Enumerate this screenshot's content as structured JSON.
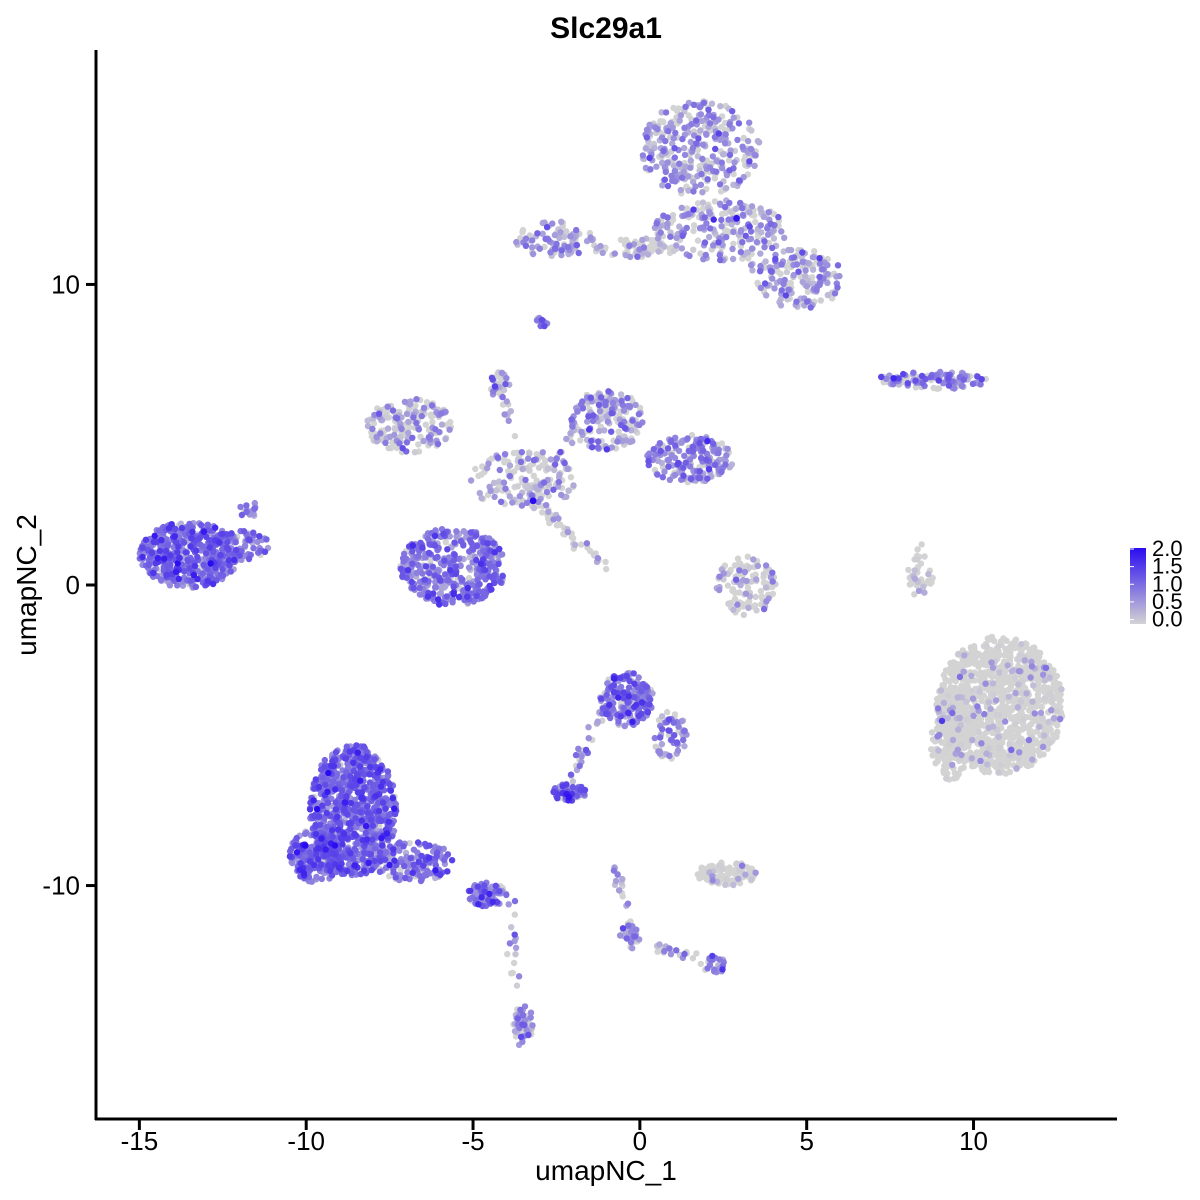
{
  "chart_data": {
    "type": "scatter",
    "title": "Slc29a1",
    "xlabel": "umapNC_1",
    "ylabel": "umapNC_2",
    "xlim": [
      -16.3,
      14.3
    ],
    "ylim": [
      -17.8,
      17.8
    ],
    "x_ticks": [
      -15,
      -10,
      -5,
      0,
      5,
      10
    ],
    "x_tick_labels": [
      "-15",
      "-10",
      "-5",
      "0",
      "5",
      "10"
    ],
    "y_ticks": [
      -10,
      0,
      10
    ],
    "y_tick_labels": [
      "-10",
      "0",
      "10"
    ],
    "grid": false,
    "legend_position": "right",
    "color_scale": {
      "low_color": "#d3d3d3",
      "high_color": "#2a0cf0",
      "min": 0.0,
      "max": 2.0,
      "labels": [
        "2.0",
        "1.5",
        "1.0",
        "0.5",
        "0.0"
      ]
    },
    "clusters": [
      {
        "cx": 1.8,
        "cy": 14.5,
        "rx": 1.8,
        "ry": 1.6,
        "n": 320,
        "expr": 0.55,
        "pos": 0.7
      },
      {
        "cx": 2.4,
        "cy": 11.8,
        "rx": 2.0,
        "ry": 1.0,
        "n": 200,
        "expr": 0.6,
        "pos": 0.7
      },
      {
        "cx": 4.8,
        "cy": 10.2,
        "rx": 1.3,
        "ry": 1.0,
        "n": 160,
        "expr": 0.6,
        "pos": 0.7
      },
      {
        "cx": -2.6,
        "cy": 11.5,
        "rx": 1.2,
        "ry": 0.6,
        "n": 90,
        "expr": 0.65,
        "pos": 0.7
      },
      {
        "cx": -0.2,
        "cy": 11.2,
        "rx": 1.3,
        "ry": 0.3,
        "n": 60,
        "expr": 0.4,
        "pos": 0.4
      },
      {
        "cx": -2.9,
        "cy": 8.8,
        "rx": 0.2,
        "ry": 0.2,
        "n": 10,
        "expr": 0.9,
        "pos": 0.9
      },
      {
        "cx": 8.7,
        "cy": 6.8,
        "rx": 1.7,
        "ry": 0.3,
        "n": 90,
        "expr": 0.7,
        "pos": 0.7
      },
      {
        "cx": -6.9,
        "cy": 5.3,
        "rx": 1.3,
        "ry": 0.9,
        "n": 170,
        "expr": 0.55,
        "pos": 0.6
      },
      {
        "cx": -1.0,
        "cy": 5.5,
        "rx": 1.1,
        "ry": 1.0,
        "n": 170,
        "expr": 0.65,
        "pos": 0.7
      },
      {
        "cx": 1.5,
        "cy": 4.2,
        "rx": 1.3,
        "ry": 0.8,
        "n": 190,
        "expr": 0.75,
        "pos": 0.8
      },
      {
        "cx": -3.5,
        "cy": 3.5,
        "rx": 1.6,
        "ry": 1.0,
        "n": 140,
        "expr": 0.45,
        "pos": 0.5
      },
      {
        "cx": -4.2,
        "cy": 6.7,
        "rx": 0.3,
        "ry": 0.5,
        "n": 20,
        "expr": 0.6,
        "pos": 0.7
      },
      {
        "cx": -5.6,
        "cy": 0.6,
        "rx": 1.6,
        "ry": 1.3,
        "n": 420,
        "expr": 0.85,
        "pos": 0.9
      },
      {
        "cx": -13.5,
        "cy": 1.0,
        "rx": 1.5,
        "ry": 1.1,
        "n": 480,
        "expr": 1.0,
        "pos": 0.95
      },
      {
        "cx": -12.0,
        "cy": 1.3,
        "rx": 0.9,
        "ry": 0.5,
        "n": 80,
        "expr": 0.9,
        "pos": 0.9
      },
      {
        "cx": -11.7,
        "cy": 2.5,
        "rx": 0.3,
        "ry": 0.3,
        "n": 15,
        "expr": 0.8,
        "pos": 0.9
      },
      {
        "cx": 3.2,
        "cy": 0.0,
        "rx": 0.9,
        "ry": 1.0,
        "n": 110,
        "expr": 0.35,
        "pos": 0.4
      },
      {
        "cx": 8.4,
        "cy": 0.3,
        "rx": 0.4,
        "ry": 0.7,
        "n": 25,
        "expr": 0.2,
        "pos": 0.2
      },
      {
        "cx": 10.8,
        "cy": -4.0,
        "rx": 1.9,
        "ry": 2.3,
        "n": 1100,
        "expr": 0.25,
        "pos": 0.1
      },
      {
        "cx": 9.3,
        "cy": -5.0,
        "rx": 0.6,
        "ry": 1.5,
        "n": 150,
        "expr": 0.3,
        "pos": 0.15
      },
      {
        "cx": -0.4,
        "cy": -3.8,
        "rx": 0.8,
        "ry": 0.9,
        "n": 200,
        "expr": 0.9,
        "pos": 0.9
      },
      {
        "cx": 0.9,
        "cy": -5.0,
        "rx": 0.5,
        "ry": 0.8,
        "n": 60,
        "expr": 0.7,
        "pos": 0.8
      },
      {
        "cx": -2.1,
        "cy": -6.9,
        "rx": 0.5,
        "ry": 0.3,
        "n": 60,
        "expr": 1.1,
        "pos": 0.9
      },
      {
        "cx": -8.6,
        "cy": -7.5,
        "rx": 1.3,
        "ry": 2.2,
        "n": 900,
        "expr": 1.0,
        "pos": 0.95
      },
      {
        "cx": -9.7,
        "cy": -9.0,
        "rx": 0.8,
        "ry": 0.9,
        "n": 220,
        "expr": 1.0,
        "pos": 0.95
      },
      {
        "cx": -6.8,
        "cy": -9.2,
        "rx": 1.2,
        "ry": 0.7,
        "n": 150,
        "expr": 0.9,
        "pos": 0.9
      },
      {
        "cx": -4.6,
        "cy": -10.3,
        "rx": 0.6,
        "ry": 0.4,
        "n": 70,
        "expr": 0.95,
        "pos": 0.9
      },
      {
        "cx": 2.6,
        "cy": -9.6,
        "rx": 0.9,
        "ry": 0.4,
        "n": 90,
        "expr": 0.35,
        "pos": 0.3
      },
      {
        "cx": -3.5,
        "cy": -14.6,
        "rx": 0.3,
        "ry": 0.6,
        "n": 50,
        "expr": 0.6,
        "pos": 0.7
      },
      {
        "cx": 2.3,
        "cy": -12.6,
        "rx": 0.3,
        "ry": 0.3,
        "n": 20,
        "expr": 0.8,
        "pos": 0.8
      },
      {
        "cx": -0.3,
        "cy": -11.7,
        "rx": 0.3,
        "ry": 0.4,
        "n": 25,
        "expr": 0.6,
        "pos": 0.7
      }
    ],
    "paths": [
      {
        "x1": -3.3,
        "y1": 2.8,
        "x2": -4.3,
        "y2": 7.2,
        "n": 40,
        "expr": 0.4,
        "pos": 0.5
      },
      {
        "x1": -3.3,
        "y1": 2.8,
        "x2": -1.1,
        "y2": 0.7,
        "n": 30,
        "expr": 0.3,
        "pos": 0.3
      },
      {
        "x1": -3.3,
        "y1": 2.8,
        "x2": -1.8,
        "y2": 5.6,
        "n": 30,
        "expr": 0.5,
        "pos": 0.5
      },
      {
        "x1": -1.1,
        "y1": -4.1,
        "x2": -2.3,
        "y2": -7.0,
        "n": 30,
        "expr": 0.7,
        "pos": 0.8
      },
      {
        "x1": -3.9,
        "y1": -10.5,
        "x2": -3.6,
        "y2": -15.2,
        "n": 25,
        "expr": 0.5,
        "pos": 0.6
      },
      {
        "x1": -0.7,
        "y1": -9.3,
        "x2": -0.2,
        "y2": -11.8,
        "n": 20,
        "expr": 0.5,
        "pos": 0.6
      },
      {
        "x1": -0.2,
        "y1": -11.8,
        "x2": 2.4,
        "y2": -12.7,
        "n": 25,
        "expr": 0.5,
        "pos": 0.5
      },
      {
        "x1": 8.4,
        "y1": 1.2,
        "x2": 8.2,
        "y2": -0.4,
        "n": 15,
        "expr": 0.2,
        "pos": 0.2
      },
      {
        "x1": -0.2,
        "y1": 11.0,
        "x2": 1.5,
        "y2": 12.5,
        "n": 20,
        "expr": 0.4,
        "pos": 0.4
      },
      {
        "x1": 2.6,
        "y1": 12.8,
        "x2": 3.4,
        "y2": 10.5,
        "n": 20,
        "expr": 0.5,
        "pos": 0.6
      },
      {
        "x1": -3.0,
        "y1": 2.7,
        "x2": -1.1,
        "y2": 0.6,
        "n": 15,
        "expr": 0.4,
        "pos": 0.5
      },
      {
        "x1": 7.5,
        "y1": 6.8,
        "x2": 9.8,
        "y2": 6.9,
        "n": 25,
        "expr": 0.7,
        "pos": 0.7
      }
    ],
    "highlights": [
      {
        "x": -3.2,
        "y": 2.8,
        "value": 2.0
      },
      {
        "x": 2.9,
        "y": 12.2,
        "value": 1.9
      },
      {
        "x": -13.8,
        "y": 0.9,
        "value": 1.6
      }
    ]
  }
}
